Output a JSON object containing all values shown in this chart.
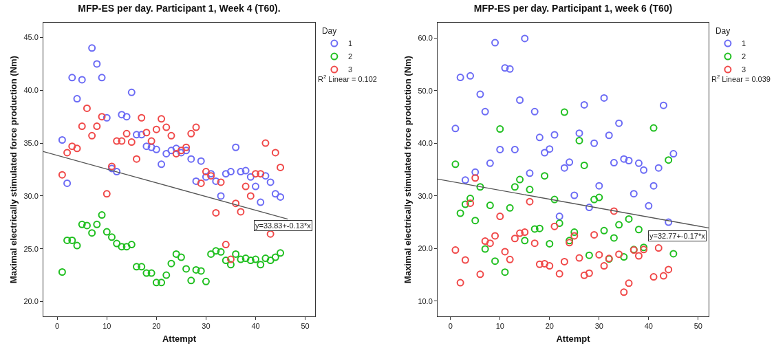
{
  "chart_data": [
    {
      "type": "scatter",
      "title": "MFP-ES per day. Participant 1, Week 4 (T60).",
      "xlabel": "Attempt",
      "ylabel": "Maximal electrically stimulated force production (Nm)",
      "legend_title": "Day",
      "legend": "top right",
      "marker": "circle",
      "grid": false,
      "x": [
        1,
        2,
        3,
        4,
        5,
        6,
        7,
        8,
        9,
        10,
        11,
        12,
        13,
        14,
        15,
        16,
        17,
        18,
        19,
        20,
        21,
        22,
        23,
        24,
        25,
        26,
        27,
        28,
        29,
        30,
        31,
        32,
        33,
        34,
        35,
        36,
        37,
        38,
        39,
        40,
        41,
        42,
        43,
        44,
        45
      ],
      "xlim": [
        -2.8,
        52
      ],
      "xticks": [
        0,
        10,
        20,
        30,
        40,
        50
      ],
      "ylim": [
        18.6,
        46.4
      ],
      "yticks": [
        {
          "value": 20,
          "label": "20.0"
        },
        {
          "value": 25,
          "label": "25.0"
        },
        {
          "value": 30,
          "label": "30.0"
        },
        {
          "value": 35,
          "label": "35.0"
        },
        {
          "value": 40,
          "label": "40.0"
        },
        {
          "value": 45,
          "label": "45.0"
        }
      ],
      "series": [
        {
          "name": "1",
          "color": "#6b6bf5",
          "values": [
            35.3,
            31.2,
            41.2,
            39.2,
            41.0,
            null,
            44.0,
            42.5,
            41.2,
            37.4,
            32.6,
            32.3,
            37.7,
            37.5,
            39.8,
            35.8,
            35.8,
            34.7,
            34.6,
            34.4,
            33.0,
            34.0,
            34.3,
            34.5,
            34.1,
            34.3,
            33.5,
            31.4,
            33.3,
            31.8,
            32.1,
            31.4,
            30.0,
            32.1,
            32.3,
            34.6,
            32.3,
            32.4,
            31.8,
            30.9,
            29.4,
            31.9,
            31.3,
            30.2,
            29.9
          ]
        },
        {
          "name": "2",
          "color": "#1fbf1f",
          "values": [
            22.8,
            25.8,
            25.8,
            25.3,
            27.3,
            27.2,
            26.5,
            27.3,
            28.2,
            26.6,
            26.1,
            25.5,
            25.2,
            25.2,
            25.4,
            23.3,
            23.3,
            22.7,
            22.7,
            21.8,
            21.8,
            22.5,
            23.6,
            24.5,
            24.2,
            23.1,
            22.0,
            23.0,
            22.9,
            21.9,
            24.5,
            24.8,
            24.7,
            23.9,
            23.5,
            24.5,
            24.0,
            24.1,
            23.9,
            24.0,
            23.5,
            24.1,
            23.9,
            24.2,
            24.6
          ]
        },
        {
          "name": "3",
          "color": "#f04848",
          "values": [
            32.0,
            34.1,
            34.7,
            34.5,
            36.6,
            38.3,
            35.7,
            36.6,
            37.5,
            30.2,
            32.8,
            35.2,
            35.2,
            35.9,
            35.1,
            33.5,
            37.4,
            36.0,
            35.2,
            36.3,
            37.3,
            36.5,
            35.7,
            34.0,
            34.3,
            34.6,
            35.9,
            36.5,
            31.2,
            32.3,
            31.9,
            28.4,
            31.3,
            25.4,
            24.0,
            29.3,
            28.5,
            30.9,
            30.0,
            32.1,
            32.1,
            35.0,
            26.4,
            34.1,
            32.7
          ]
        },
        {
          "type": "line",
          "marker": "none",
          "color": "#555555",
          "x": [
            -2.8,
            46.5
          ],
          "values": [
            34.2,
            27.8
          ]
        }
      ],
      "annotations": [
        "y=33.83+-0.13*x",
        "R$^{2}$ Linear = 0.102"
      ]
    },
    {
      "type": "scatter",
      "title": "MFP-ES per day. Participant 1, week 6 (T60)",
      "xlabel": "Attempt",
      "ylabel": "Maximal electrically stimulated force production (Nm)",
      "legend_title": "Day",
      "legend": "top right",
      "marker": "circle",
      "grid": false,
      "x": [
        1,
        2,
        3,
        4,
        5,
        6,
        7,
        8,
        9,
        10,
        11,
        12,
        13,
        14,
        15,
        16,
        17,
        18,
        19,
        20,
        21,
        22,
        23,
        24,
        25,
        26,
        27,
        28,
        29,
        30,
        31,
        32,
        33,
        34,
        35,
        36,
        37,
        38,
        39,
        40,
        41,
        42,
        43,
        44,
        45
      ],
      "xlim": [
        -2.6,
        52.1
      ],
      "xticks": [
        0,
        10,
        20,
        30,
        40,
        50
      ],
      "ylim": [
        7.1,
        62.9
      ],
      "yticks": [
        {
          "value": 10,
          "label": "10.0"
        },
        {
          "value": 20,
          "label": "20.0"
        },
        {
          "value": 30,
          "label": "30.0"
        },
        {
          "value": 40,
          "label": "40.0"
        },
        {
          "value": 50,
          "label": "50.0"
        },
        {
          "value": 60,
          "label": "60.0"
        }
      ],
      "series": [
        {
          "name": "1",
          "color": "#6b6bf5",
          "values": [
            42.8,
            52.5,
            33.0,
            52.8,
            34.5,
            49.3,
            46.0,
            36.2,
            59.1,
            38.8,
            54.3,
            54.1,
            38.8,
            48.2,
            59.9,
            34.3,
            46.0,
            41.1,
            38.2,
            38.9,
            41.6,
            26.1,
            35.3,
            36.4,
            30.1,
            41.9,
            47.3,
            27.8,
            40.0,
            31.9,
            48.6,
            41.5,
            36.3,
            43.8,
            37.0,
            36.7,
            30.4,
            36.2,
            34.9,
            28.1,
            31.9,
            35.3,
            47.2,
            25.0,
            38.0
          ]
        },
        {
          "name": "2",
          "color": "#1fbf1f",
          "values": [
            36.0,
            26.7,
            28.4,
            29.5,
            25.3,
            31.7,
            19.9,
            28.2,
            17.6,
            42.7,
            15.5,
            27.7,
            31.7,
            33.1,
            21.5,
            31.2,
            23.7,
            23.8,
            33.8,
            20.9,
            29.3,
            24.8,
            45.9,
            21.5,
            23.1,
            40.5,
            35.8,
            18.7,
            29.3,
            29.7,
            23.4,
            18.0,
            22.0,
            24.5,
            18.4,
            25.6,
            19.8,
            23.6,
            20.2,
            null,
            42.9,
            null,
            null,
            36.8,
            19.0
          ]
        },
        {
          "name": "3",
          "color": "#f04848",
          "values": [
            19.7,
            13.5,
            17.8,
            28.6,
            33.4,
            15.1,
            21.4,
            21.0,
            22.4,
            26.1,
            19.4,
            17.9,
            21.9,
            22.9,
            23.1,
            28.9,
            21.0,
            17.0,
            17.1,
            16.7,
            24.2,
            15.2,
            17.5,
            21.1,
            22.4,
            18.2,
            14.9,
            15.3,
            22.6,
            18.8,
            16.7,
            18.1,
            27.1,
            18.9,
            11.7,
            13.4,
            19.7,
            18.6,
            19.8,
            null,
            14.6,
            20.1,
            14.8,
            16.0,
            null
          ]
        },
        {
          "type": "line",
          "marker": "none",
          "color": "#555555",
          "x": [
            -2.6,
            52.1
          ],
          "values": [
            33.2,
            23.9
          ]
        }
      ],
      "annotations": [
        "y=32.77+-0.17*x",
        "R$^{2}$ Linear = 0.039"
      ]
    }
  ]
}
